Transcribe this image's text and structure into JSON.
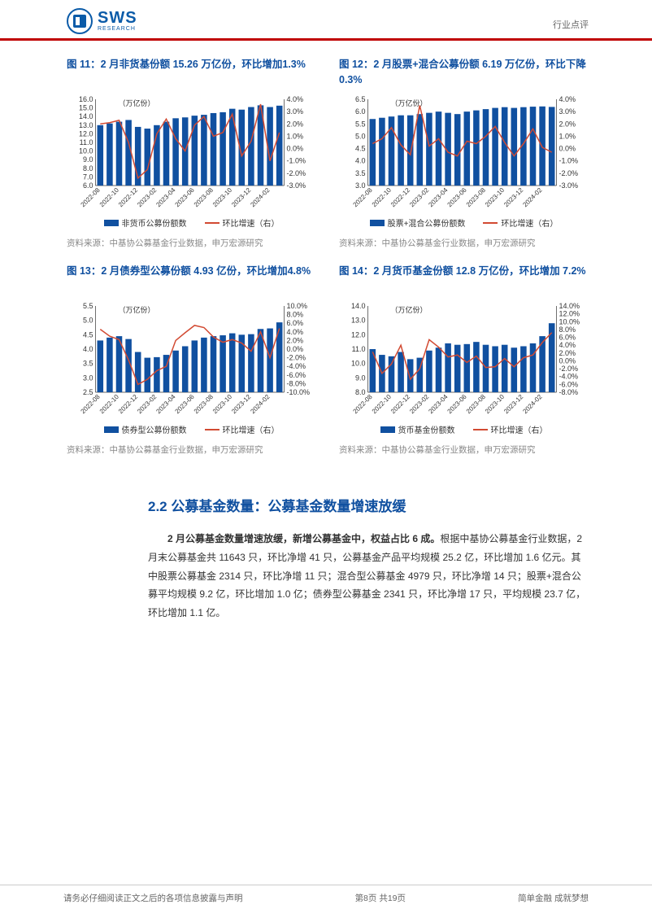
{
  "header": {
    "brand": "SWS",
    "brand_sub": "RESEARCH",
    "right": "行业点评"
  },
  "charts": [
    {
      "title": "图 11：2 月非货基份额 15.26 万亿份，环比增加1.3%",
      "unit": "（万亿份）",
      "xlabels": [
        "2022-08",
        "2022-10",
        "2022-12",
        "2023-02",
        "2023-04",
        "2023-06",
        "2023-08",
        "2023-10",
        "2023-12",
        "2024-02"
      ],
      "y1ticks": [
        "6.0",
        "7.0",
        "8.0",
        "9.0",
        "10.0",
        "11.0",
        "12.0",
        "13.0",
        "14.0",
        "15.0",
        "16.0"
      ],
      "y1lim": [
        6,
        16
      ],
      "y2ticks": [
        "-3.0%",
        "-2.0%",
        "-1.0%",
        "0.0%",
        "1.0%",
        "2.0%",
        "3.0%",
        "4.0%"
      ],
      "y2lim": [
        -3,
        4
      ],
      "bars": [
        13.0,
        13.2,
        13.4,
        13.6,
        12.8,
        12.6,
        13.0,
        13.4,
        13.8,
        13.9,
        14.1,
        14.2,
        14.4,
        14.5,
        14.9,
        14.8,
        15.1,
        15.3,
        15.1,
        15.26
      ],
      "line": [
        2.0,
        2.1,
        2.3,
        0.5,
        -2.4,
        -1.7,
        1.2,
        2.4,
        0.8,
        -0.2,
        1.9,
        2.6,
        1.0,
        1.3,
        2.8,
        -0.6,
        0.6,
        3.6,
        -1.0,
        1.3
      ],
      "legend": [
        "非货币公募份额数",
        "环比增速（右）"
      ],
      "source": "资料来源：中基协公募基金行业数据，申万宏源研究",
      "bar_color": "#1050a0",
      "line_color": "#d24a32",
      "bg": "#ffffff"
    },
    {
      "title": "图 12：2 月股票+混合公募份额 6.19 万亿份，环比下降 0.3%",
      "unit": "（万亿份）",
      "xlabels": [
        "2022-08",
        "2022-10",
        "2022-12",
        "2023-02",
        "2023-04",
        "2023-06",
        "2023-08",
        "2023-10",
        "2023-12",
        "2024-02"
      ],
      "y1ticks": [
        "3.0",
        "3.5",
        "4.0",
        "4.5",
        "5.0",
        "5.5",
        "6.0",
        "6.5"
      ],
      "y1lim": [
        3,
        6.5
      ],
      "y2ticks": [
        "-3.0%",
        "-2.0%",
        "-1.0%",
        "0.0%",
        "1.0%",
        "2.0%",
        "3.0%",
        "4.0%"
      ],
      "y2lim": [
        -3,
        4
      ],
      "bars": [
        5.7,
        5.75,
        5.8,
        5.85,
        5.85,
        5.9,
        5.95,
        6.0,
        5.95,
        5.9,
        6.0,
        6.05,
        6.1,
        6.15,
        6.18,
        6.15,
        6.18,
        6.2,
        6.21,
        6.19
      ],
      "line": [
        0.4,
        0.8,
        1.7,
        0.3,
        -0.5,
        3.5,
        0.2,
        0.8,
        -0.3,
        -0.6,
        0.6,
        0.4,
        1.0,
        1.8,
        0.5,
        -0.6,
        0.4,
        1.6,
        0.1,
        -0.3
      ],
      "legend": [
        "股票+混合公募份额数",
        "环比增速（右）"
      ],
      "source": "资料来源：中基协公募基金行业数据，申万宏源研究",
      "bar_color": "#1050a0",
      "line_color": "#d24a32",
      "bg": "#ffffff"
    },
    {
      "title": "图 13：2 月债券型公募份额 4.93 亿份，环比增加4.8%",
      "unit": "（万亿份）",
      "xlabels": [
        "2022-08",
        "2022-10",
        "2022-12",
        "2023-02",
        "2023-04",
        "2023-06",
        "2023-08",
        "2023-10",
        "2023-12",
        "2024-02"
      ],
      "y1ticks": [
        "2.5",
        "3.0",
        "3.5",
        "4.0",
        "4.5",
        "5.0",
        "5.5"
      ],
      "y1lim": [
        2.5,
        5.5
      ],
      "y2ticks": [
        "-10.0%",
        "-8.0%",
        "-6.0%",
        "-4.0%",
        "-2.0%",
        "0.0%",
        "2.0%",
        "4.0%",
        "6.0%",
        "8.0%",
        "10.0%"
      ],
      "y2lim": [
        -10,
        10
      ],
      "bars": [
        4.3,
        4.4,
        4.45,
        4.35,
        3.9,
        3.7,
        3.72,
        3.8,
        3.95,
        4.1,
        4.3,
        4.4,
        4.45,
        4.48,
        4.55,
        4.5,
        4.52,
        4.7,
        4.72,
        4.93
      ],
      "line": [
        4.6,
        3.0,
        2.2,
        -2.5,
        -8.2,
        -7.0,
        -5.0,
        -4.0,
        2.0,
        3.8,
        5.5,
        5.0,
        2.8,
        1.6,
        2.2,
        1.4,
        -0.5,
        4.0,
        -2.0,
        4.8
      ],
      "legend": [
        "债券型公募份额数",
        "环比增速（右）"
      ],
      "source": "资料来源：中基协公募基金行业数据，申万宏源研究",
      "bar_color": "#1050a0",
      "line_color": "#d24a32",
      "bg": "#ffffff"
    },
    {
      "title": "图 14：2 月货币基金份额 12.8 万亿份，环比增加 7.2%",
      "unit": "（万亿份）",
      "xlabels": [
        "2022-08",
        "2022-10",
        "2022-12",
        "2023-02",
        "2023-04",
        "2023-06",
        "2023-08",
        "2023-10",
        "2023-12",
        "2024-02"
      ],
      "y1ticks": [
        "8.0",
        "9.0",
        "10.0",
        "11.0",
        "12.0",
        "13.0",
        "14.0"
      ],
      "y1lim": [
        8,
        14
      ],
      "y2ticks": [
        "-8.0%",
        "-6.0%",
        "-4.0%",
        "-2.0%",
        "0.0%",
        "2.0%",
        "4.0%",
        "6.0%",
        "8.0%",
        "10.0%",
        "12.0%",
        "14.0%"
      ],
      "y2lim": [
        -8,
        14
      ],
      "bars": [
        11.0,
        10.6,
        10.5,
        10.8,
        10.3,
        10.4,
        10.9,
        11.1,
        11.4,
        11.3,
        11.35,
        11.5,
        11.3,
        11.2,
        11.3,
        11.1,
        11.2,
        11.4,
        11.9,
        12.8
      ],
      "line": [
        2.3,
        -3.2,
        -0.8,
        4.0,
        -4.7,
        -2.0,
        5.4,
        3.5,
        1.0,
        1.5,
        -0.4,
        1.2,
        -1.7,
        -1.5,
        0.6,
        -1.5,
        0.8,
        1.5,
        4.7,
        7.2
      ],
      "legend": [
        "货币基金份额数",
        "环比增速（右）"
      ],
      "source": "资料来源：中基协公募基金行业数据，申万宏源研究",
      "bar_color": "#1050a0",
      "line_color": "#d24a32",
      "bg": "#ffffff"
    }
  ],
  "section": {
    "title": "2.2 公募基金数量：公募基金数量增速放缓"
  },
  "body": {
    "bold": "2 月公募基金数量增速放缓，新增公募基金中，权益占比 6 成。",
    "rest": "根据中基协公募基金行业数据，2 月末公募基金共 11643 只，环比净增 41 只，公募基金产品平均规模 25.2 亿，环比增加 1.6 亿元。其中股票公募基金 2314 只，环比净增 11 只；混合型公募基金 4979 只，环比净增 14 只；股票+混合公募平均规模 9.2 亿，环比增加 1.0 亿；债券型公募基金 2341 只，环比净增 17 只，平均规模 23.7 亿，环比增加 1.1 亿。"
  },
  "footer": {
    "left": "请务必仔细阅读正文之后的各项信息披露与声明",
    "center": "第8页 共19页",
    "right": "简单金融 成就梦想"
  }
}
